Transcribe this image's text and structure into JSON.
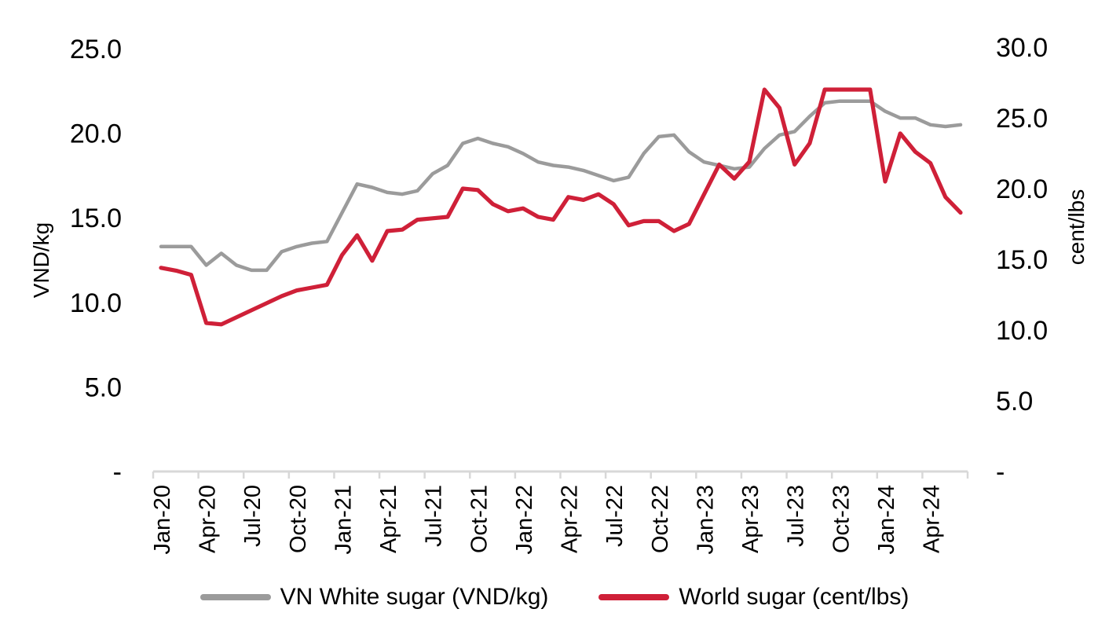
{
  "chart_data": {
    "type": "line",
    "title": "",
    "grid": false,
    "legend_position": "bottom",
    "x": [
      "Jan-20",
      "Feb-20",
      "Mar-20",
      "Apr-20",
      "May-20",
      "Jun-20",
      "Jul-20",
      "Aug-20",
      "Sep-20",
      "Oct-20",
      "Nov-20",
      "Dec-20",
      "Jan-21",
      "Feb-21",
      "Mar-21",
      "Apr-21",
      "May-21",
      "Jun-21",
      "Jul-21",
      "Aug-21",
      "Sep-21",
      "Oct-21",
      "Nov-21",
      "Dec-21",
      "Jan-22",
      "Feb-22",
      "Mar-22",
      "Apr-22",
      "May-22",
      "Jun-22",
      "Jul-22",
      "Aug-22",
      "Sep-22",
      "Oct-22",
      "Nov-22",
      "Dec-22",
      "Jan-23",
      "Feb-23",
      "Mar-23",
      "Apr-23",
      "May-23",
      "Jun-23",
      "Jul-23",
      "Aug-23",
      "Sep-23",
      "Oct-23",
      "Nov-23",
      "Dec-23",
      "Jan-24",
      "Feb-24",
      "Mar-24",
      "Apr-24",
      "May-24",
      "Jun-24"
    ],
    "x_axis": {
      "tick_every_months": 3,
      "visible_tick_labels": [
        "Jan-20",
        "Apr-20",
        "Jul-20",
        "Oct-20",
        "Jan-21",
        "Apr-21",
        "Jul-21",
        "Oct-21",
        "Jan-22",
        "Apr-22",
        "Jul-22",
        "Oct-22",
        "Jan-23",
        "Apr-23",
        "Jul-23",
        "Oct-23",
        "Jan-24",
        "Apr-24"
      ]
    },
    "left_axis": {
      "title": "VND/kg",
      "range": [
        0,
        25
      ],
      "tick_values": [
        25,
        20,
        15,
        10,
        5,
        0
      ],
      "tick_labels": [
        "25.0",
        "20.0",
        "15.0",
        "10.0",
        "5.0",
        "-"
      ]
    },
    "right_axis": {
      "title": "cent/lbs",
      "range": [
        0,
        30
      ],
      "tick_values": [
        30,
        25,
        20,
        15,
        10,
        5,
        0
      ],
      "tick_labels": [
        "30.0",
        "25.0",
        "20.0",
        "15.0",
        "10.0",
        "5.0",
        "-"
      ]
    },
    "series": [
      {
        "name": "VN White sugar (VND/kg)",
        "axis": "left",
        "color": "#9b9b9b",
        "values": [
          13.3,
          13.3,
          13.3,
          12.2,
          12.9,
          12.2,
          11.9,
          11.9,
          13.0,
          13.3,
          13.5,
          13.6,
          15.3,
          17.0,
          16.8,
          16.5,
          16.4,
          16.6,
          17.6,
          18.1,
          19.4,
          19.7,
          19.4,
          19.2,
          18.8,
          18.3,
          18.1,
          18.0,
          17.8,
          17.5,
          17.2,
          17.4,
          18.8,
          19.8,
          19.9,
          18.9,
          18.3,
          18.1,
          17.9,
          18.0,
          19.1,
          19.9,
          20.1,
          21.0,
          21.8,
          21.9,
          21.9,
          21.9,
          21.3,
          20.9,
          20.9,
          20.5,
          20.4,
          20.5
        ]
      },
      {
        "name": "World sugar (cent/lbs)",
        "axis": "right",
        "color": "#cf2038",
        "values": [
          14.4,
          14.2,
          13.9,
          10.5,
          10.4,
          10.9,
          11.4,
          11.9,
          12.4,
          12.8,
          13.0,
          13.2,
          15.3,
          16.7,
          14.9,
          17.0,
          17.1,
          17.8,
          17.9,
          18.0,
          20.0,
          19.9,
          18.9,
          18.4,
          18.6,
          18.0,
          17.8,
          19.4,
          19.2,
          19.6,
          18.9,
          17.4,
          17.7,
          17.7,
          17.0,
          17.5,
          19.6,
          21.7,
          20.7,
          21.9,
          27.0,
          25.7,
          21.7,
          23.2,
          27.0,
          27.0,
          27.0,
          27.0,
          20.5,
          23.9,
          22.6,
          21.8,
          19.4,
          18.3
        ]
      }
    ]
  },
  "legend": {
    "items": [
      {
        "label": "VN White sugar (VND/kg)",
        "color": "#9b9b9b"
      },
      {
        "label": "World sugar (cent/lbs)",
        "color": "#cf2038"
      }
    ]
  },
  "colors": {
    "axis_line": "#d8d8d8",
    "text": "#000000",
    "background": "#ffffff"
  }
}
